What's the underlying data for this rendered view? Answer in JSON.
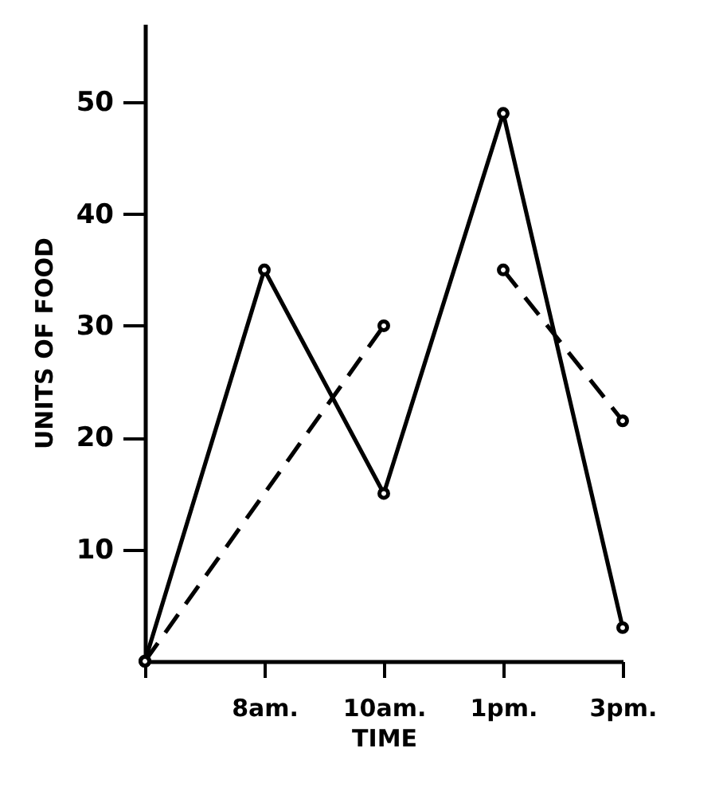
{
  "chart_data": {
    "type": "line",
    "xlabel": "TIME",
    "ylabel": "UNITS OF FOOD",
    "categories": [
      null,
      "8am.",
      "10am.",
      "1pm.",
      "3pm."
    ],
    "ylim": [
      0,
      57
    ],
    "yticks": [
      10,
      20,
      30,
      40,
      50
    ],
    "marker": "circle",
    "series": [
      {
        "color": "#000000",
        "line_style": "solid",
        "values": [
          0,
          35,
          15,
          49,
          3
        ]
      },
      {
        "color": "#000000",
        "line_style": "dashed",
        "values": [
          0,
          null,
          30,
          null,
          null
        ]
      },
      {
        "color": "#000000",
        "line_style": "dashed",
        "values": [
          null,
          null,
          null,
          35,
          21.5
        ]
      }
    ]
  }
}
